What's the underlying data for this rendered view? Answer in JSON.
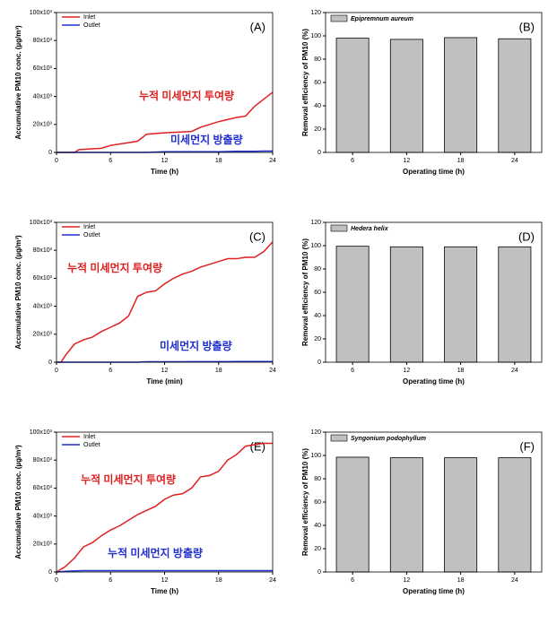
{
  "chart_data": [
    {
      "type": "line",
      "panel_label": "(A)",
      "xlabel": "Time (h)",
      "ylabel": "Accumulative PM10 conc. (µg/m³)",
      "x": [
        0,
        2,
        2.5,
        5,
        6,
        8,
        9,
        10,
        12,
        15,
        16,
        18,
        20,
        21,
        22,
        23,
        24
      ],
      "series": [
        {
          "name": "Inlet",
          "color": "#e02020",
          "values": [
            0,
            0,
            2000,
            3000,
            5000,
            7000,
            8000,
            13000,
            14000,
            15000,
            18000,
            22000,
            25000,
            26000,
            33000,
            38000,
            43000
          ]
        },
        {
          "name": "Outlet",
          "color": "#1f2fd0",
          "values": [
            0,
            0,
            0,
            0,
            0,
            0,
            0,
            0,
            500,
            500,
            500,
            500,
            800,
            800,
            800,
            1000,
            1000
          ]
        }
      ],
      "xlim": [
        0,
        24
      ],
      "xticks": [
        0,
        6,
        12,
        18,
        24
      ],
      "ylim": [
        0,
        100000
      ],
      "yticks": [
        0,
        {
          "value": 20000,
          "label": "20x10³"
        },
        {
          "value": 40000,
          "label": "40x10³"
        },
        {
          "value": 60000,
          "label": "60x10³"
        },
        {
          "value": 80000,
          "label": "80x10³"
        },
        {
          "value": 100000,
          "label": "100x10³"
        }
      ],
      "annotations": [
        {
          "text": "누적 미세먼지 투여량",
          "color": "#e02020"
        },
        {
          "text": "미세먼지 방출량",
          "color": "#1f2fd0"
        }
      ]
    },
    {
      "type": "bar",
      "panel_label": "(B)",
      "xlabel": "Operating time (h)",
      "ylabel": "Removal efficiency of PM10 (%)",
      "categories": [
        "6",
        "12",
        "18",
        "24"
      ],
      "series": [
        {
          "name": "Epipremnum aureum",
          "color": "#c0c0c0",
          "values": [
            98,
            97,
            98.5,
            97.5
          ]
        }
      ],
      "ylim": [
        0,
        120
      ],
      "yticks": [
        0,
        20,
        40,
        60,
        80,
        100,
        120
      ]
    },
    {
      "type": "line",
      "panel_label": "(C)",
      "xlabel": "Time (min)",
      "ylabel": "Accumulative PM10 conc. (µg/m³)",
      "x": [
        0,
        0.5,
        1,
        2,
        3,
        4,
        5,
        6,
        7,
        8,
        9,
        10,
        11,
        12,
        13,
        14,
        15,
        16,
        17,
        18,
        19,
        20,
        21,
        22,
        23,
        24
      ],
      "series": [
        {
          "name": "Inlet",
          "color": "#e02020",
          "values": [
            0,
            0,
            5000,
            13000,
            16000,
            18000,
            22000,
            25000,
            28000,
            33000,
            47000,
            50000,
            51000,
            56000,
            60000,
            63000,
            65000,
            68000,
            70000,
            72000,
            74000,
            74000,
            75000,
            75000,
            79000,
            86000
          ]
        },
        {
          "name": "Outlet",
          "color": "#1f2fd0",
          "values": [
            0,
            0,
            0,
            0,
            0,
            0,
            0,
            0,
            0,
            0,
            0,
            300,
            300,
            300,
            300,
            300,
            400,
            400,
            400,
            400,
            400,
            500,
            500,
            500,
            500,
            500
          ]
        }
      ],
      "xlim": [
        0,
        24
      ],
      "xticks": [
        0,
        6,
        12,
        18,
        24
      ],
      "ylim": [
        0,
        100000
      ],
      "yticks": [
        0,
        {
          "value": 20000,
          "label": "20x10³"
        },
        {
          "value": 40000,
          "label": "40x10³"
        },
        {
          "value": 60000,
          "label": "60x10³"
        },
        {
          "value": 80000,
          "label": "80x10³"
        },
        {
          "value": 100000,
          "label": "100x10³"
        }
      ],
      "annotations": [
        {
          "text": "누적 미세먼지 투여량",
          "color": "#e02020"
        },
        {
          "text": "미세먼지 방출량",
          "color": "#1f2fd0"
        }
      ]
    },
    {
      "type": "bar",
      "panel_label": "(D)",
      "xlabel": "Operating time (h)",
      "ylabel": "Removal efficiency of PM10 (%)",
      "categories": [
        "6",
        "12",
        "18",
        "24"
      ],
      "series": [
        {
          "name": "Hedera helix",
          "color": "#c0c0c0",
          "values": [
            99.5,
            99,
            99,
            99
          ]
        }
      ],
      "ylim": [
        0,
        120
      ],
      "yticks": [
        0,
        20,
        40,
        60,
        80,
        100,
        120
      ]
    },
    {
      "type": "line",
      "panel_label": "(E)",
      "xlabel": "Time (h)",
      "ylabel": "Accumulative PM10 conc. (µg/m³)",
      "x": [
        0,
        1,
        2,
        3,
        4,
        5,
        6,
        7,
        8,
        9,
        10,
        11,
        12,
        13,
        14,
        15,
        16,
        17,
        18,
        19,
        20,
        21,
        22,
        23,
        24
      ],
      "series": [
        {
          "name": "Inlet",
          "color": "#e02020",
          "values": [
            0,
            4000,
            10000,
            18000,
            21000,
            26000,
            30000,
            33000,
            37000,
            41000,
            44000,
            47000,
            52000,
            55000,
            56000,
            60000,
            68000,
            69000,
            72000,
            80000,
            84000,
            90000,
            91000,
            92000,
            92000
          ]
        },
        {
          "name": "Outlet",
          "color": "#1f2fd0",
          "values": [
            0,
            500,
            800,
            1000,
            1000,
            1000,
            1000,
            1000,
            1000,
            1000,
            1000,
            1000,
            1000,
            1000,
            1000,
            1000,
            1000,
            1000,
            1000,
            1000,
            1000,
            1000,
            1000,
            1000,
            1000
          ]
        }
      ],
      "xlim": [
        0,
        24
      ],
      "xticks": [
        0,
        6,
        12,
        18,
        24
      ],
      "ylim": [
        0,
        100000
      ],
      "yticks": [
        0,
        {
          "value": 20000,
          "label": "20x10³"
        },
        {
          "value": 40000,
          "label": "40x10³"
        },
        {
          "value": 60000,
          "label": "60x10³"
        },
        {
          "value": 80000,
          "label": "80x10³"
        },
        {
          "value": 100000,
          "label": "100x10³"
        }
      ],
      "annotations": [
        {
          "text": "누적 미세먼지 투여량",
          "color": "#e02020"
        },
        {
          "text": "누적 미세먼지 방출량",
          "color": "#1f2fd0"
        }
      ]
    },
    {
      "type": "bar",
      "panel_label": "(F)",
      "xlabel": "Operating time (h)",
      "ylabel": "Removal efficiency of PM10 (%)",
      "categories": [
        "6",
        "12",
        "18",
        "24"
      ],
      "series": [
        {
          "name": "Syngonium podophyllum",
          "color": "#c0c0c0",
          "values": [
            98.5,
            98,
            98,
            98
          ]
        }
      ],
      "ylim": [
        0,
        120
      ],
      "yticks": [
        0,
        20,
        40,
        60,
        80,
        100,
        120
      ]
    }
  ]
}
